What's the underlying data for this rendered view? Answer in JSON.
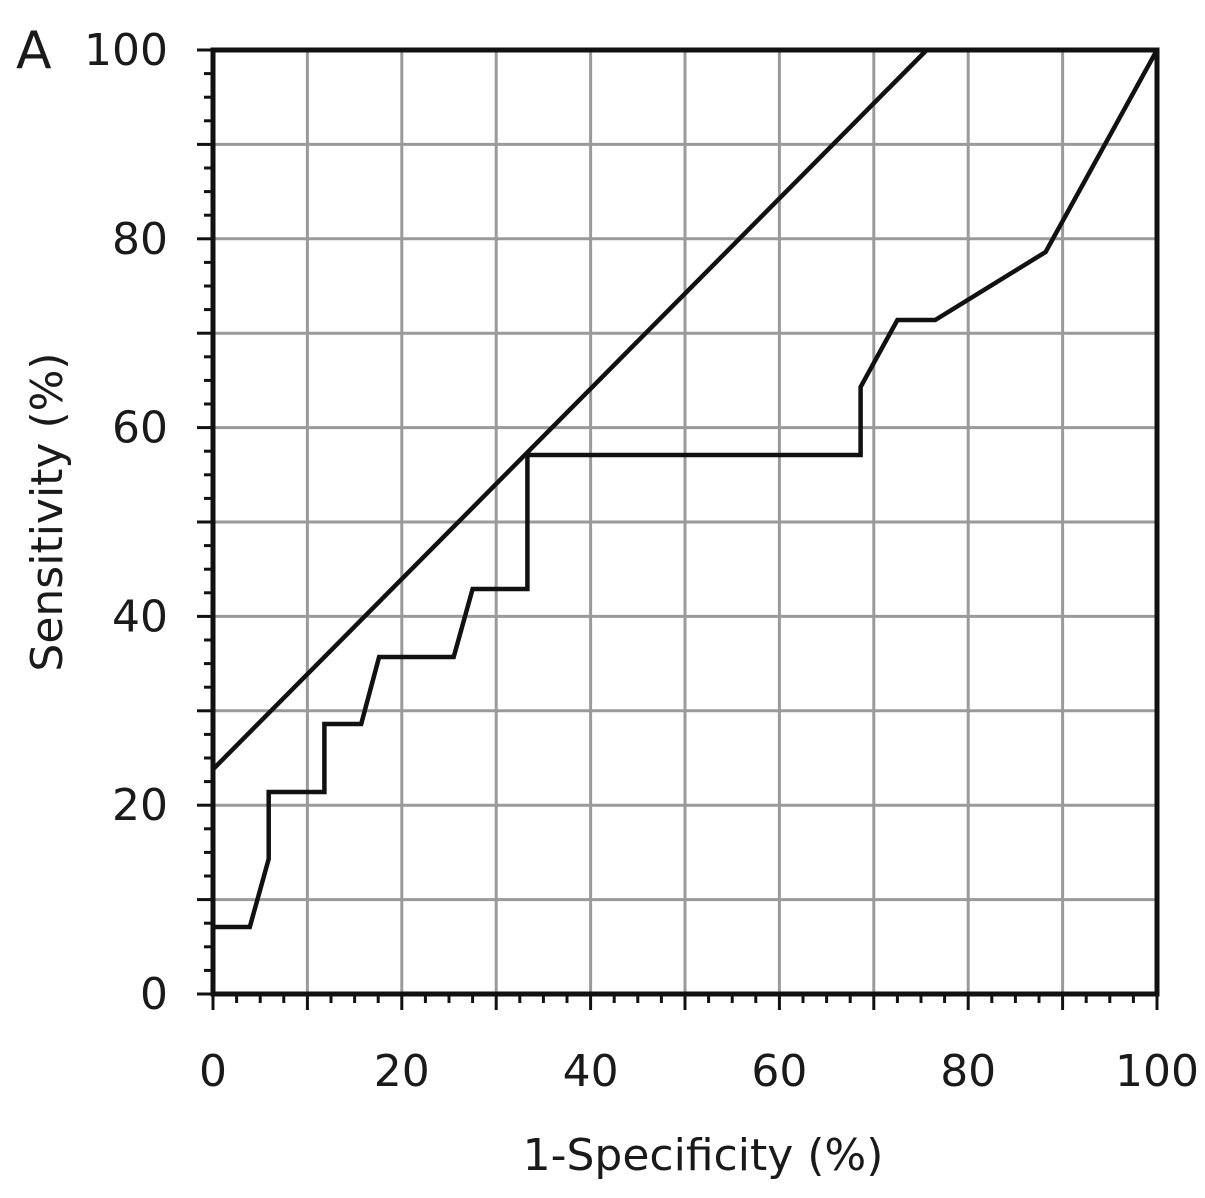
{
  "panel_label": "A",
  "chart_data": {
    "type": "line",
    "title": "",
    "xlabel": "1-Specificity (%)",
    "ylabel": "Sensitivity (%)",
    "xlim": [
      0,
      100
    ],
    "ylim": [
      0,
      100
    ],
    "x_ticks": [
      "0",
      "20",
      "40",
      "60",
      "80",
      "100"
    ],
    "y_ticks": [
      "0",
      "20",
      "40",
      "60",
      "80",
      "100"
    ],
    "grid": true,
    "legend": "none",
    "series": [
      {
        "points": [
          [
            0,
            0
          ],
          [
            0,
            7.1
          ],
          [
            3.9,
            7.1
          ],
          [
            5.9,
            14.3
          ],
          [
            5.9,
            21.4
          ],
          [
            11.8,
            21.4
          ],
          [
            11.8,
            28.6
          ],
          [
            15.7,
            28.6
          ],
          [
            17.6,
            35.7
          ],
          [
            25.5,
            35.7
          ],
          [
            27.5,
            42.9
          ],
          [
            33.3,
            42.9
          ],
          [
            33.3,
            57.1
          ],
          [
            68.6,
            57.1
          ],
          [
            68.6,
            64.3
          ],
          [
            72.5,
            71.4
          ],
          [
            76.5,
            71.4
          ],
          [
            88.2,
            78.6
          ],
          [
            100,
            100
          ]
        ]
      },
      {
        "points": [
          [
            0,
            23.8
          ],
          [
            75.6,
            100
          ]
        ]
      }
    ]
  }
}
